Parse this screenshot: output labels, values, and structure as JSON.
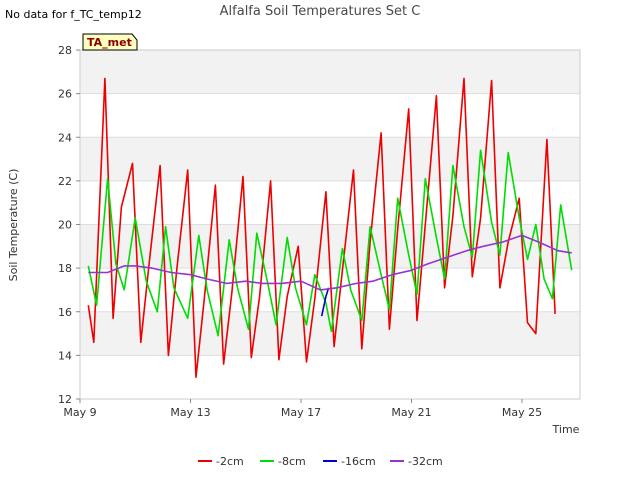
{
  "title": "Alfalfa Soil Temperatures Set C",
  "no_data_note": "No data for f_TC_temp12",
  "badge": "TA_met",
  "chart_data": {
    "type": "line",
    "title": "Alfalfa Soil Temperatures Set C",
    "xlabel": "Time",
    "ylabel": "Soil Temperature (C)",
    "x_ticks": [
      {
        "day": 9,
        "label": "May 9"
      },
      {
        "day": 13,
        "label": "May 13"
      },
      {
        "day": 17,
        "label": "May 17"
      },
      {
        "day": 21,
        "label": "May 21"
      },
      {
        "day": 25,
        "label": "May 25"
      }
    ],
    "xlim": [
      9,
      27.1
    ],
    "ylim": [
      12,
      28
    ],
    "y_ticks": [
      12,
      14,
      16,
      18,
      20,
      22,
      24,
      26,
      28
    ],
    "grid": "banded",
    "legend_position": "bottom",
    "series": [
      {
        "name": "-2cm",
        "color": "#ee0000",
        "x": [
          9.3,
          9.5,
          9.9,
          10.2,
          10.5,
          10.9,
          11.2,
          11.5,
          11.9,
          12.2,
          12.5,
          12.9,
          13.2,
          13.5,
          13.9,
          14.2,
          14.5,
          14.9,
          15.2,
          15.5,
          15.9,
          16.2,
          16.5,
          16.9,
          17.2,
          17.5,
          17.9,
          18.2,
          18.5,
          18.9,
          19.2,
          19.5,
          19.9,
          20.2,
          20.5,
          20.9,
          21.2,
          21.5,
          21.9,
          22.2,
          22.5,
          22.9,
          23.2,
          23.5,
          23.9,
          24.2,
          24.5,
          24.9,
          25.2,
          25.5,
          25.9,
          26.2,
          26.5,
          26.8
        ],
        "y": [
          16.3,
          14.6,
          26.7,
          15.7,
          20.8,
          22.8,
          14.6,
          18.2,
          22.7,
          14.0,
          17.9,
          22.5,
          13.0,
          16.6,
          21.8,
          13.6,
          16.9,
          22.2,
          13.9,
          16.7,
          22.0,
          13.8,
          16.7,
          19.0,
          13.7,
          16.6,
          21.5,
          14.4,
          17.9,
          22.5,
          14.3,
          19.2,
          24.2,
          15.2,
          19.8,
          25.3,
          15.6,
          20.0,
          25.9,
          17.1,
          20.4,
          26.7,
          17.6,
          20.3,
          26.6,
          17.1,
          19.2,
          21.2,
          15.5,
          15.0,
          23.9,
          15.9,
          null,
          null
        ]
      },
      {
        "name": "-8cm",
        "color": "#00dd00",
        "x": [
          9.3,
          9.6,
          10.0,
          10.3,
          10.6,
          11.0,
          11.4,
          11.8,
          12.1,
          12.4,
          12.9,
          13.3,
          13.6,
          14.0,
          14.4,
          14.7,
          15.1,
          15.4,
          15.8,
          16.1,
          16.5,
          16.8,
          17.2,
          17.5,
          17.9,
          18.1,
          18.5,
          18.8,
          19.2,
          19.5,
          19.9,
          20.2,
          20.5,
          20.9,
          21.2,
          21.5,
          21.9,
          22.2,
          22.5,
          22.9,
          23.2,
          23.5,
          23.9,
          24.2,
          24.5,
          24.9,
          25.2,
          25.5,
          25.8,
          26.1,
          26.4,
          26.8
        ],
        "y": [
          18.1,
          16.3,
          22.1,
          18.2,
          17.0,
          20.3,
          17.4,
          16.0,
          19.9,
          17.1,
          15.7,
          19.5,
          17.0,
          14.9,
          19.3,
          17.1,
          15.2,
          19.6,
          17.3,
          15.4,
          19.4,
          17.1,
          15.4,
          17.7,
          16.4,
          15.1,
          18.9,
          17.0,
          15.6,
          19.9,
          17.7,
          16.1,
          21.2,
          18.6,
          16.8,
          22.1,
          19.4,
          17.5,
          22.7,
          19.9,
          18.5,
          23.4,
          20.1,
          18.6,
          23.3,
          20.3,
          18.4,
          20.0,
          17.5,
          16.6,
          20.9,
          17.9
        ]
      },
      {
        "name": "-16cm",
        "color": "#0000cc",
        "x": [
          17.75,
          17.9,
          18.0
        ],
        "y": [
          15.8,
          16.7,
          17.1
        ]
      },
      {
        "name": "-32cm",
        "color": "#9933cc",
        "x": [
          9.3,
          10.0,
          10.6,
          11.0,
          11.6,
          12.3,
          13.0,
          13.6,
          14.3,
          15.0,
          15.6,
          16.3,
          17.0,
          17.7,
          18.3,
          19.0,
          19.6,
          20.3,
          21.0,
          21.6,
          22.3,
          23.0,
          23.6,
          24.3,
          25.0,
          25.6,
          26.3,
          26.8
        ],
        "y": [
          17.8,
          17.8,
          18.1,
          18.1,
          18.0,
          17.8,
          17.7,
          17.5,
          17.3,
          17.4,
          17.3,
          17.3,
          17.4,
          17.0,
          17.1,
          17.3,
          17.4,
          17.7,
          17.9,
          18.2,
          18.5,
          18.8,
          19.0,
          19.2,
          19.5,
          19.2,
          18.8,
          18.7
        ]
      }
    ]
  }
}
